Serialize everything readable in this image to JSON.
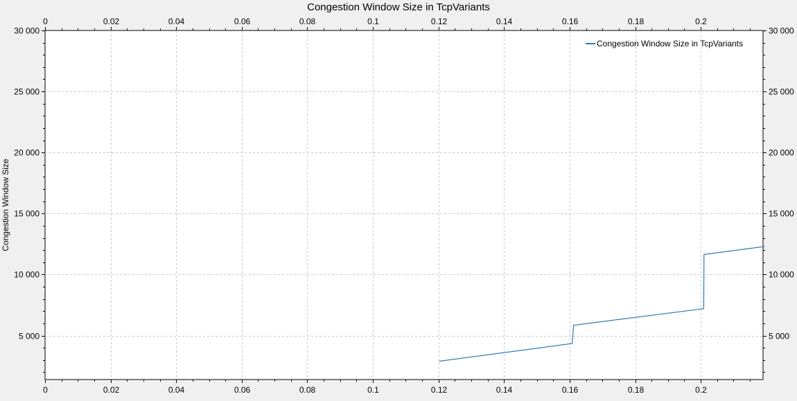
{
  "chart_data": {
    "type": "line",
    "title": "Congestion Window Size in TcpVariants",
    "xlabel": "",
    "ylabel": "Congestion Window Size",
    "xlim": [
      0,
      0.219
    ],
    "ylim": [
      1400,
      30000
    ],
    "x_ticks": [
      0,
      0.02,
      0.04,
      0.06,
      0.08,
      0.1,
      0.12,
      0.14,
      0.16,
      0.18,
      0.2
    ],
    "x_tick_labels": [
      "0",
      "0.02",
      "0.04",
      "0.06",
      "0.08",
      "0.1",
      "0.12",
      "0.14",
      "0.16",
      "0.18",
      "0.2"
    ],
    "y_ticks": [
      5000,
      10000,
      15000,
      20000,
      25000,
      30000
    ],
    "y_tick_labels": [
      "5 000",
      "10 000",
      "15 000",
      "20 000",
      "25 000",
      "30 000"
    ],
    "grid": true,
    "legend_position": "top-right",
    "series": [
      {
        "name": "Congestion Window Size in TcpVariants",
        "color": "#2c7bb6",
        "x": [
          0.1202,
          0.1608,
          0.1608,
          0.1612,
          0.2007,
          0.2009,
          0.201,
          0.2195
        ],
        "y": [
          2900,
          4350,
          4350,
          5850,
          7200,
          7200,
          11650,
          12300
        ]
      }
    ]
  }
}
